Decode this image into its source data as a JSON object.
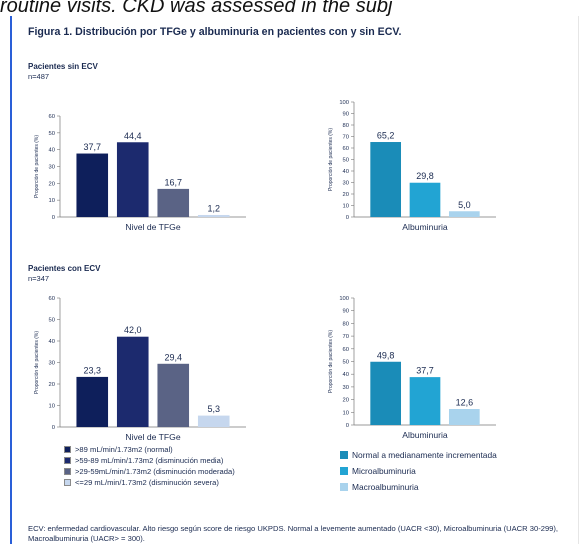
{
  "top_caption": "routine visits. CKD was assessed in the subj",
  "figure_title": "Figura 1. Distribución por TFGe y albuminuria en pacientes con y sin ECV.",
  "groups": [
    {
      "title": "Pacientes sin ECV",
      "n": "n=487"
    },
    {
      "title": "Pacientes con ECV",
      "n": "n=347"
    }
  ],
  "colors": {
    "tfge": [
      "#0e1f5b",
      "#1c2a6e",
      "#5a6385",
      "#c6d7ee"
    ],
    "albuminuria": [
      "#1a8cb8",
      "#22a4d3",
      "#a9d3ed"
    ]
  },
  "chart_data": [
    {
      "type": "bar",
      "group": "Pacientes sin ECV",
      "categories": [
        ">89 mL/min/1.73m2 (normal)",
        ">59-89 mL/min/1.73m2 (disminución media)",
        ">29-59mL/min/1.73m2 (disminución moderada)",
        "<=29 mL/min/1.73m2 (disminución severa)"
      ],
      "values": [
        37.7,
        44.4,
        16.7,
        1.2
      ],
      "data_labels": [
        "37,7",
        "44,4",
        "16,7",
        "1,2"
      ],
      "xlabel": "Nivel de TFGe",
      "ylabel": "Proporción de pacientes (%)",
      "ylim": [
        0,
        60
      ],
      "yticks": [
        0,
        10,
        20,
        30,
        40,
        50,
        60
      ]
    },
    {
      "type": "bar",
      "group": "Pacientes sin ECV",
      "categories": [
        "Normal a medianamente incrementada",
        "Microalbuminuria",
        "Macroalbuminuria"
      ],
      "values": [
        65.2,
        29.8,
        5.0
      ],
      "data_labels": [
        "65,2",
        "29,8",
        "5,0"
      ],
      "xlabel": "Albuminuria",
      "ylabel": "Proporción de pacientes (%)",
      "ylim": [
        0,
        100
      ],
      "yticks": [
        0,
        10,
        20,
        30,
        40,
        50,
        60,
        70,
        80,
        90,
        100
      ]
    },
    {
      "type": "bar",
      "group": "Pacientes con ECV",
      "categories": [
        ">89 mL/min/1.73m2 (normal)",
        ">59-89 mL/min/1.73m2 (disminución media)",
        ">29-59mL/min/1.73m2 (disminución moderada)",
        "<=29 mL/min/1.73m2 (disminución severa)"
      ],
      "values": [
        23.3,
        42.0,
        29.4,
        5.3
      ],
      "data_labels": [
        "23,3",
        "42,0",
        "29,4",
        "5,3"
      ],
      "xlabel": "Nivel de TFGe",
      "ylabel": "Proporción de pacientes (%)",
      "ylim": [
        0,
        60
      ],
      "yticks": [
        0,
        10,
        20,
        30,
        40,
        50,
        60
      ]
    },
    {
      "type": "bar",
      "group": "Pacientes con ECV",
      "categories": [
        "Normal a medianamente incrementada",
        "Microalbuminuria",
        "Macroalbuminuria"
      ],
      "values": [
        49.8,
        37.7,
        12.6
      ],
      "data_labels": [
        "49,8",
        "37,7",
        "12,6"
      ],
      "xlabel": "Albuminuria",
      "ylabel": "Proporción de pacientes (%)",
      "ylim": [
        0,
        100
      ],
      "yticks": [
        0,
        10,
        20,
        30,
        40,
        50,
        60,
        70,
        80,
        90,
        100
      ]
    }
  ],
  "legend_tfge": [
    ">89 mL/min/1.73m2 (normal)",
    ">59-89 mL/min/1.73m2 (disminución media)",
    ">29-59mL/min/1.73m2 (disminución moderada)",
    "<=29 mL/min/1.73m2 (disminución severa)"
  ],
  "legend_albuminuria": [
    "Normal a medianamente incrementada",
    "Microalbuminuria",
    "Macroalbuminuria"
  ],
  "footnote": "ECV: enfermedad cardiovascular. Alto riesgo según score de riesgo UKPDS. Normal a levemente aumentado (UACR <30), Microalbuminuria (UACR 30-299), Macroalbuminuria (UACR> = 300)."
}
